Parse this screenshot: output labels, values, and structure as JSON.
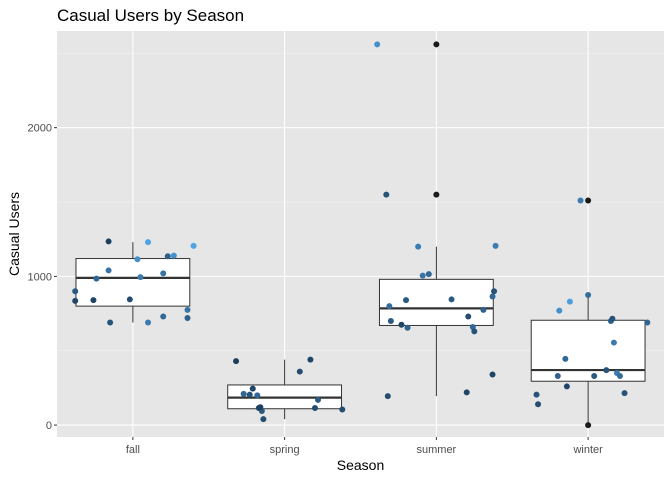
{
  "chart_data": {
    "type": "boxplot",
    "title": "Casual Users by Season",
    "xlabel": "Season",
    "ylabel": "Casual Users",
    "categories": [
      "fall",
      "spring",
      "summer",
      "winter"
    ],
    "ylim": [
      -80,
      2650
    ],
    "yticks": [
      0,
      1000,
      2000
    ],
    "ytick_labels": [
      "0",
      "1000",
      "2000"
    ],
    "grid": true,
    "colors": {
      "panel_bg": "#e6e6e6",
      "grid_major": "#ffffff",
      "box_fill": "#ffffff",
      "box_stroke": "#333333",
      "outlier": "#1a1a1a",
      "point_dark": "#132b43",
      "point_light": "#56b1f7"
    },
    "boxes": [
      {
        "category": "fall",
        "whisker_low": 690,
        "q1": 800,
        "median": 990,
        "q3": 1120,
        "whisker_high": 1230,
        "outliers": []
      },
      {
        "category": "spring",
        "whisker_low": 40,
        "q1": 110,
        "median": 185,
        "q3": 270,
        "whisker_high": 440,
        "outliers": []
      },
      {
        "category": "summer",
        "whisker_low": 195,
        "q1": 670,
        "median": 785,
        "q3": 980,
        "whisker_high": 1200,
        "outliers": [
          1550,
          2560
        ]
      },
      {
        "category": "winter",
        "whisker_low": 0,
        "q1": 295,
        "median": 370,
        "q3": 705,
        "whisker_high": 875,
        "outliers": [
          0,
          1510
        ]
      }
    ],
    "jitter_points": [
      {
        "category": "fall",
        "dx": -0.38,
        "y": 900,
        "shade": 0.35
      },
      {
        "category": "fall",
        "dx": -0.38,
        "y": 835,
        "shade": 0.2
      },
      {
        "category": "fall",
        "dx": -0.24,
        "y": 985,
        "shade": 0.45
      },
      {
        "category": "fall",
        "dx": -0.16,
        "y": 1235,
        "shade": 0.15
      },
      {
        "category": "fall",
        "dx": -0.16,
        "y": 1040,
        "shade": 0.55
      },
      {
        "category": "fall",
        "dx": -0.26,
        "y": 840,
        "shade": 0.2
      },
      {
        "category": "fall",
        "dx": -0.15,
        "y": 690,
        "shade": 0.3
      },
      {
        "category": "fall",
        "dx": -0.02,
        "y": 845,
        "shade": 0.25
      },
      {
        "category": "fall",
        "dx": 0.03,
        "y": 1115,
        "shade": 0.75
      },
      {
        "category": "fall",
        "dx": 0.05,
        "y": 995,
        "shade": 0.6
      },
      {
        "category": "fall",
        "dx": 0.1,
        "y": 1230,
        "shade": 0.9
      },
      {
        "category": "fall",
        "dx": 0.1,
        "y": 690,
        "shade": 0.6
      },
      {
        "category": "fall",
        "dx": 0.2,
        "y": 730,
        "shade": 0.45
      },
      {
        "category": "fall",
        "dx": 0.2,
        "y": 1020,
        "shade": 0.55
      },
      {
        "category": "fall",
        "dx": 0.23,
        "y": 1135,
        "shade": 0.4
      },
      {
        "category": "fall",
        "dx": 0.27,
        "y": 1140,
        "shade": 0.75
      },
      {
        "category": "fall",
        "dx": 0.36,
        "y": 775,
        "shade": 0.55
      },
      {
        "category": "fall",
        "dx": 0.36,
        "y": 720,
        "shade": 0.4
      },
      {
        "category": "fall",
        "dx": 0.4,
        "y": 1205,
        "shade": 0.9
      },
      {
        "category": "spring",
        "dx": -0.32,
        "y": 430,
        "shade": 0.15
      },
      {
        "category": "spring",
        "dx": -0.27,
        "y": 210,
        "shade": 0.45
      },
      {
        "category": "spring",
        "dx": -0.23,
        "y": 205,
        "shade": 0.3
      },
      {
        "category": "spring",
        "dx": -0.21,
        "y": 245,
        "shade": 0.2
      },
      {
        "category": "spring",
        "dx": -0.18,
        "y": 200,
        "shade": 0.45
      },
      {
        "category": "spring",
        "dx": -0.17,
        "y": 115,
        "shade": 0.2
      },
      {
        "category": "spring",
        "dx": -0.15,
        "y": 95,
        "shade": 0.35
      },
      {
        "category": "spring",
        "dx": -0.16,
        "y": 120,
        "shade": 0.15
      },
      {
        "category": "spring",
        "dx": -0.14,
        "y": 40,
        "shade": 0.25
      },
      {
        "category": "spring",
        "dx": 0.1,
        "y": 360,
        "shade": 0.25
      },
      {
        "category": "spring",
        "dx": 0.17,
        "y": 440,
        "shade": 0.2
      },
      {
        "category": "spring",
        "dx": 0.2,
        "y": 115,
        "shade": 0.25
      },
      {
        "category": "spring",
        "dx": 0.22,
        "y": 170,
        "shade": 0.35
      },
      {
        "category": "spring",
        "dx": 0.38,
        "y": 105,
        "shade": 0.25
      },
      {
        "category": "summer",
        "dx": -0.39,
        "y": 2560,
        "shade": 0.75
      },
      {
        "category": "summer",
        "dx": -0.33,
        "y": 1550,
        "shade": 0.3
      },
      {
        "category": "summer",
        "dx": -0.32,
        "y": 195,
        "shade": 0.25
      },
      {
        "category": "summer",
        "dx": -0.31,
        "y": 800,
        "shade": 0.5
      },
      {
        "category": "summer",
        "dx": -0.3,
        "y": 700,
        "shade": 0.35
      },
      {
        "category": "summer",
        "dx": -0.23,
        "y": 675,
        "shade": 0.2
      },
      {
        "category": "summer",
        "dx": -0.2,
        "y": 840,
        "shade": 0.35
      },
      {
        "category": "summer",
        "dx": -0.19,
        "y": 655,
        "shade": 0.4
      },
      {
        "category": "summer",
        "dx": -0.12,
        "y": 1200,
        "shade": 0.6
      },
      {
        "category": "summer",
        "dx": -0.09,
        "y": 1005,
        "shade": 0.55
      },
      {
        "category": "summer",
        "dx": -0.05,
        "y": 1015,
        "shade": 0.45
      },
      {
        "category": "summer",
        "dx": 0.1,
        "y": 845,
        "shade": 0.35
      },
      {
        "category": "summer",
        "dx": 0.2,
        "y": 220,
        "shade": 0.2
      },
      {
        "category": "summer",
        "dx": 0.21,
        "y": 730,
        "shade": 0.25
      },
      {
        "category": "summer",
        "dx": 0.24,
        "y": 660,
        "shade": 0.45
      },
      {
        "category": "summer",
        "dx": 0.25,
        "y": 630,
        "shade": 0.3
      },
      {
        "category": "summer",
        "dx": 0.31,
        "y": 775,
        "shade": 0.4
      },
      {
        "category": "summer",
        "dx": 0.37,
        "y": 340,
        "shade": 0.2
      },
      {
        "category": "summer",
        "dx": 0.37,
        "y": 865,
        "shade": 0.45
      },
      {
        "category": "summer",
        "dx": 0.38,
        "y": 900,
        "shade": 0.3
      },
      {
        "category": "summer",
        "dx": 0.39,
        "y": 1205,
        "shade": 0.6
      },
      {
        "category": "winter",
        "dx": -0.34,
        "y": 205,
        "shade": 0.3
      },
      {
        "category": "winter",
        "dx": -0.33,
        "y": 140,
        "shade": 0.25
      },
      {
        "category": "winter",
        "dx": -0.2,
        "y": 330,
        "shade": 0.4
      },
      {
        "category": "winter",
        "dx": -0.19,
        "y": 770,
        "shade": 0.75
      },
      {
        "category": "winter",
        "dx": -0.15,
        "y": 445,
        "shade": 0.45
      },
      {
        "category": "winter",
        "dx": -0.14,
        "y": 260,
        "shade": 0.2
      },
      {
        "category": "winter",
        "dx": -0.12,
        "y": 830,
        "shade": 0.85
      },
      {
        "category": "winter",
        "dx": -0.05,
        "y": 1510,
        "shade": 0.6
      },
      {
        "category": "winter",
        "dx": 0.0,
        "y": 875,
        "shade": 0.5
      },
      {
        "category": "winter",
        "dx": 0.04,
        "y": 330,
        "shade": 0.35
      },
      {
        "category": "winter",
        "dx": 0.12,
        "y": 370,
        "shade": 0.3
      },
      {
        "category": "winter",
        "dx": 0.15,
        "y": 700,
        "shade": 0.4
      },
      {
        "category": "winter",
        "dx": 0.16,
        "y": 715,
        "shade": 0.3
      },
      {
        "category": "winter",
        "dx": 0.17,
        "y": 555,
        "shade": 0.6
      },
      {
        "category": "winter",
        "dx": 0.19,
        "y": 350,
        "shade": 0.6
      },
      {
        "category": "winter",
        "dx": 0.21,
        "y": 330,
        "shade": 0.5
      },
      {
        "category": "winter",
        "dx": 0.24,
        "y": 215,
        "shade": 0.3
      },
      {
        "category": "winter",
        "dx": 0.39,
        "y": 690,
        "shade": 0.45
      }
    ]
  }
}
